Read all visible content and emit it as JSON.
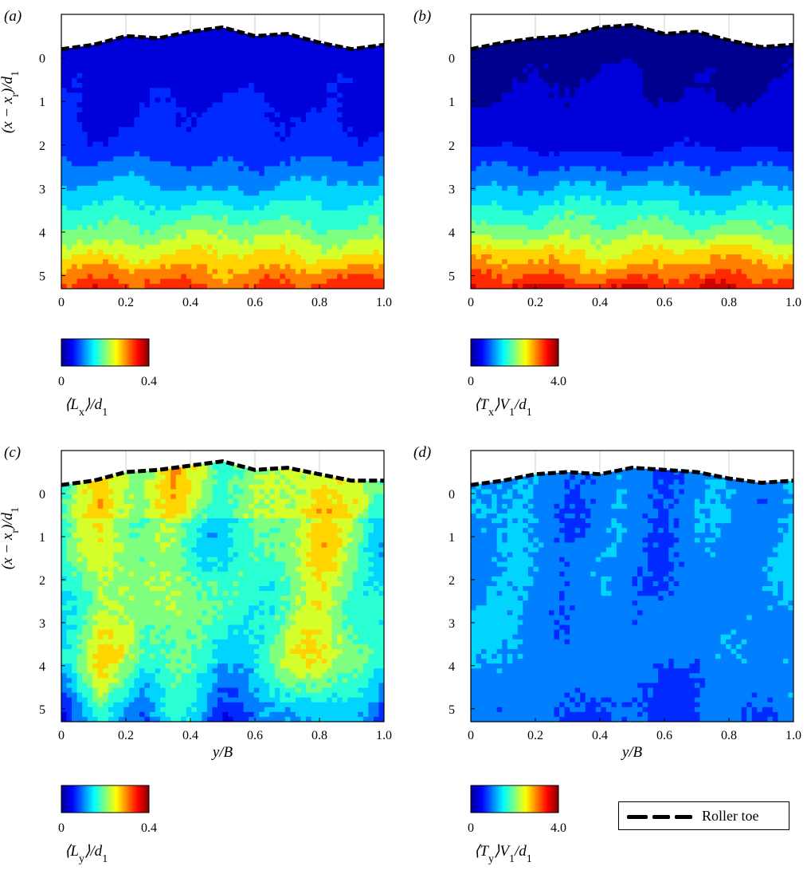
{
  "colors": {
    "colormap": [
      "#00008f",
      "#0000ff",
      "#007fff",
      "#00ffff",
      "#7fff7f",
      "#ffff00",
      "#ff7f00",
      "#ff0000",
      "#7f0000"
    ],
    "line": "#000000",
    "grid": "#cfcfcf"
  },
  "legend": {
    "label": "Roller toe"
  },
  "chart_data": [
    {
      "type": "heatmap",
      "panel_label": "(a)",
      "ylabel": "(x − x_r)/d_1",
      "xlabel": "",
      "xticks": [
        "0",
        "0.2",
        "0.4",
        "0.6",
        "0.8",
        "1.0"
      ],
      "yticks": [
        "0",
        "1",
        "2",
        "3",
        "4",
        "5"
      ],
      "xlim": [
        0,
        1
      ],
      "ylim": [
        5.3,
        -1
      ],
      "colorbar": {
        "min": "0",
        "max": "0.4",
        "label": "⟨L_x⟩/d_1"
      },
      "field_profile_fraction_vs_depth": {
        "depth": [
          0,
          1,
          2,
          3,
          4,
          4.5,
          5,
          5.3
        ],
        "level": [
          0.1,
          0.12,
          0.15,
          0.3,
          0.5,
          0.62,
          0.75,
          0.82
        ]
      },
      "roller_toe": [
        [
          0.0,
          -0.2
        ],
        [
          0.1,
          -0.3
        ],
        [
          0.2,
          -0.5
        ],
        [
          0.3,
          -0.45
        ],
        [
          0.4,
          -0.6
        ],
        [
          0.5,
          -0.7
        ],
        [
          0.6,
          -0.5
        ],
        [
          0.7,
          -0.55
        ],
        [
          0.8,
          -0.35
        ],
        [
          0.9,
          -0.2
        ],
        [
          1.0,
          -0.3
        ]
      ]
    },
    {
      "type": "heatmap",
      "panel_label": "(b)",
      "ylabel": "",
      "xlabel": "",
      "xticks": [
        "0",
        "0.2",
        "0.4",
        "0.6",
        "0.8",
        "1.0"
      ],
      "yticks": [
        "0",
        "1",
        "2",
        "3",
        "4",
        "5"
      ],
      "xlim": [
        0,
        1
      ],
      "ylim": [
        5.3,
        -1
      ],
      "colorbar": {
        "min": "0",
        "max": "4.0",
        "label": "⟨T_x⟩V_1/d_1"
      },
      "field_profile_fraction_vs_depth": {
        "depth": [
          0,
          1,
          2,
          3,
          4,
          4.5,
          5,
          5.3
        ],
        "level": [
          0.03,
          0.05,
          0.1,
          0.3,
          0.5,
          0.65,
          0.78,
          0.88
        ]
      },
      "roller_toe": [
        [
          0.0,
          -0.2
        ],
        [
          0.1,
          -0.35
        ],
        [
          0.2,
          -0.45
        ],
        [
          0.3,
          -0.5
        ],
        [
          0.4,
          -0.7
        ],
        [
          0.5,
          -0.75
        ],
        [
          0.6,
          -0.55
        ],
        [
          0.7,
          -0.6
        ],
        [
          0.8,
          -0.4
        ],
        [
          0.9,
          -0.25
        ],
        [
          1.0,
          -0.3
        ]
      ]
    },
    {
      "type": "heatmap",
      "panel_label": "(c)",
      "ylabel": "(x − x_r)/d_1",
      "xlabel": "y/B",
      "xticks": [
        "0",
        "0.2",
        "0.4",
        "0.6",
        "0.8",
        "1.0"
      ],
      "yticks": [
        "0",
        "1",
        "2",
        "3",
        "4",
        "5"
      ],
      "xlim": [
        0,
        1
      ],
      "ylim": [
        5.3,
        -1
      ],
      "colorbar": {
        "min": "0",
        "max": "0.4",
        "label": "⟨L_y⟩/d_1"
      },
      "field_profile_fraction_vs_position": {
        "y": [
          0,
          0.12,
          0.25,
          0.35,
          0.5,
          0.65,
          0.8,
          0.9,
          1.0
        ],
        "level": [
          0.35,
          0.62,
          0.45,
          0.55,
          0.35,
          0.45,
          0.62,
          0.5,
          0.35
        ]
      },
      "roller_toe": [
        [
          0.0,
          -0.2
        ],
        [
          0.1,
          -0.3
        ],
        [
          0.2,
          -0.5
        ],
        [
          0.3,
          -0.55
        ],
        [
          0.4,
          -0.65
        ],
        [
          0.5,
          -0.75
        ],
        [
          0.6,
          -0.55
        ],
        [
          0.7,
          -0.6
        ],
        [
          0.8,
          -0.45
        ],
        [
          0.9,
          -0.3
        ],
        [
          1.0,
          -0.3
        ]
      ]
    },
    {
      "type": "heatmap",
      "panel_label": "(d)",
      "ylabel": "",
      "xlabel": "y/B",
      "xticks": [
        "0",
        "0.2",
        "0.4",
        "0.6",
        "0.8",
        "1.0"
      ],
      "yticks": [
        "0",
        "1",
        "2",
        "3",
        "4",
        "5"
      ],
      "xlim": [
        0,
        1
      ],
      "ylim": [
        5.3,
        -1
      ],
      "colorbar": {
        "min": "0",
        "max": "4.0",
        "label": "⟨T_y⟩V_1/d_1"
      },
      "field_profile_fraction_vs_position": {
        "y": [
          0,
          0.15,
          0.3,
          0.45,
          0.6,
          0.75,
          0.9,
          1.0
        ],
        "level": [
          0.28,
          0.3,
          0.22,
          0.27,
          0.2,
          0.28,
          0.25,
          0.3
        ]
      },
      "roller_toe": [
        [
          0.0,
          -0.2
        ],
        [
          0.1,
          -0.3
        ],
        [
          0.2,
          -0.45
        ],
        [
          0.3,
          -0.5
        ],
        [
          0.4,
          -0.45
        ],
        [
          0.5,
          -0.6
        ],
        [
          0.6,
          -0.55
        ],
        [
          0.7,
          -0.5
        ],
        [
          0.8,
          -0.35
        ],
        [
          0.9,
          -0.25
        ],
        [
          1.0,
          -0.3
        ]
      ]
    }
  ]
}
